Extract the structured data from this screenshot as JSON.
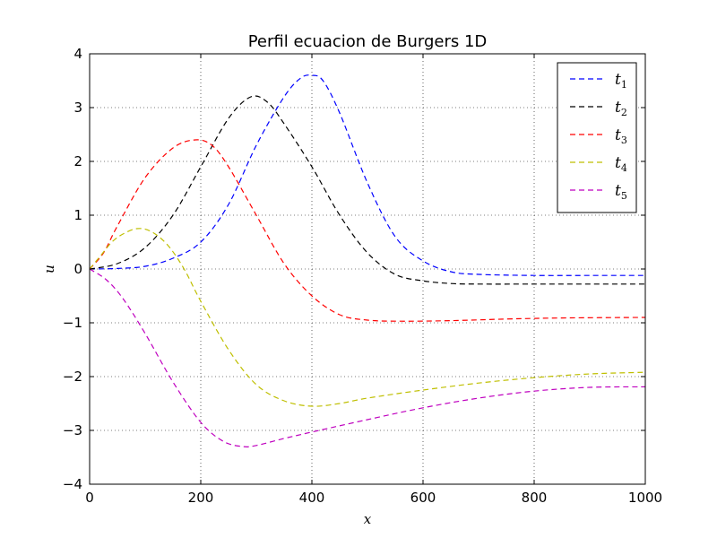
{
  "chart_data": {
    "type": "line",
    "title": "Perfil ecuacion de Burgers 1D",
    "xlabel": "x",
    "ylabel": "u",
    "xlim": [
      0,
      1000
    ],
    "ylim": [
      -4,
      4
    ],
    "xticks": [
      0,
      200,
      400,
      600,
      800,
      1000
    ],
    "yticks": [
      -4,
      -3,
      -2,
      -1,
      0,
      1,
      2,
      3,
      4
    ],
    "xtick_labels": [
      "0",
      "200",
      "400",
      "600",
      "800",
      "1000"
    ],
    "ytick_labels": [
      "−4",
      "−3",
      "−2",
      "−1",
      "0",
      "1",
      "2",
      "3",
      "4"
    ],
    "grid": true,
    "legend_position": "top-right",
    "line_style": "dashed",
    "series": [
      {
        "name": "t1",
        "name_base": "t",
        "name_sub": "1",
        "color": "#0000ff",
        "points": [
          [
            0,
            0
          ],
          [
            50,
            0.01
          ],
          [
            100,
            0.05
          ],
          [
            150,
            0.2
          ],
          [
            200,
            0.5
          ],
          [
            250,
            1.2
          ],
          [
            300,
            2.3
          ],
          [
            350,
            3.2
          ],
          [
            380,
            3.55
          ],
          [
            400,
            3.6
          ],
          [
            420,
            3.5
          ],
          [
            450,
            2.9
          ],
          [
            500,
            1.6
          ],
          [
            550,
            0.6
          ],
          [
            600,
            0.15
          ],
          [
            650,
            -0.05
          ],
          [
            700,
            -0.1
          ],
          [
            800,
            -0.12
          ],
          [
            900,
            -0.12
          ],
          [
            1000,
            -0.12
          ]
        ]
      },
      {
        "name": "t2",
        "name_base": "t",
        "name_sub": "2",
        "color": "#000000",
        "points": [
          [
            0,
            0
          ],
          [
            50,
            0.1
          ],
          [
            100,
            0.4
          ],
          [
            150,
            1.0
          ],
          [
            200,
            1.9
          ],
          [
            250,
            2.8
          ],
          [
            290,
            3.2
          ],
          [
            320,
            3.1
          ],
          [
            350,
            2.7
          ],
          [
            400,
            1.9
          ],
          [
            450,
            1.0
          ],
          [
            500,
            0.3
          ],
          [
            550,
            -0.1
          ],
          [
            600,
            -0.22
          ],
          [
            650,
            -0.27
          ],
          [
            700,
            -0.28
          ],
          [
            800,
            -0.28
          ],
          [
            900,
            -0.28
          ],
          [
            1000,
            -0.28
          ]
        ]
      },
      {
        "name": "t3",
        "name_base": "t",
        "name_sub": "3",
        "color": "#ff0000",
        "points": [
          [
            0,
            0
          ],
          [
            25,
            0.3
          ],
          [
            50,
            0.8
          ],
          [
            100,
            1.7
          ],
          [
            150,
            2.25
          ],
          [
            190,
            2.4
          ],
          [
            220,
            2.3
          ],
          [
            250,
            1.9
          ],
          [
            300,
            1.0
          ],
          [
            350,
            0.1
          ],
          [
            400,
            -0.5
          ],
          [
            450,
            -0.85
          ],
          [
            500,
            -0.95
          ],
          [
            560,
            -0.97
          ],
          [
            650,
            -0.96
          ],
          [
            750,
            -0.93
          ],
          [
            850,
            -0.91
          ],
          [
            1000,
            -0.9
          ]
        ]
      },
      {
        "name": "t4",
        "name_base": "t",
        "name_sub": "4",
        "color": "#bfbf00",
        "points": [
          [
            0,
            0
          ],
          [
            20,
            0.25
          ],
          [
            40,
            0.5
          ],
          [
            60,
            0.65
          ],
          [
            85,
            0.75
          ],
          [
            110,
            0.7
          ],
          [
            140,
            0.45
          ],
          [
            170,
            0.0
          ],
          [
            200,
            -0.6
          ],
          [
            250,
            -1.5
          ],
          [
            300,
            -2.15
          ],
          [
            350,
            -2.45
          ],
          [
            400,
            -2.55
          ],
          [
            450,
            -2.5
          ],
          [
            500,
            -2.4
          ],
          [
            600,
            -2.25
          ],
          [
            700,
            -2.12
          ],
          [
            800,
            -2.02
          ],
          [
            900,
            -1.95
          ],
          [
            1000,
            -1.92
          ]
        ]
      },
      {
        "name": "t5",
        "name_base": "t",
        "name_sub": "5",
        "color": "#bf00bf",
        "points": [
          [
            0,
            0
          ],
          [
            30,
            -0.2
          ],
          [
            60,
            -0.55
          ],
          [
            100,
            -1.2
          ],
          [
            150,
            -2.1
          ],
          [
            200,
            -2.85
          ],
          [
            240,
            -3.2
          ],
          [
            275,
            -3.3
          ],
          [
            300,
            -3.28
          ],
          [
            350,
            -3.15
          ],
          [
            400,
            -3.03
          ],
          [
            500,
            -2.8
          ],
          [
            600,
            -2.58
          ],
          [
            700,
            -2.4
          ],
          [
            800,
            -2.27
          ],
          [
            900,
            -2.2
          ],
          [
            1000,
            -2.19
          ]
        ]
      }
    ]
  }
}
